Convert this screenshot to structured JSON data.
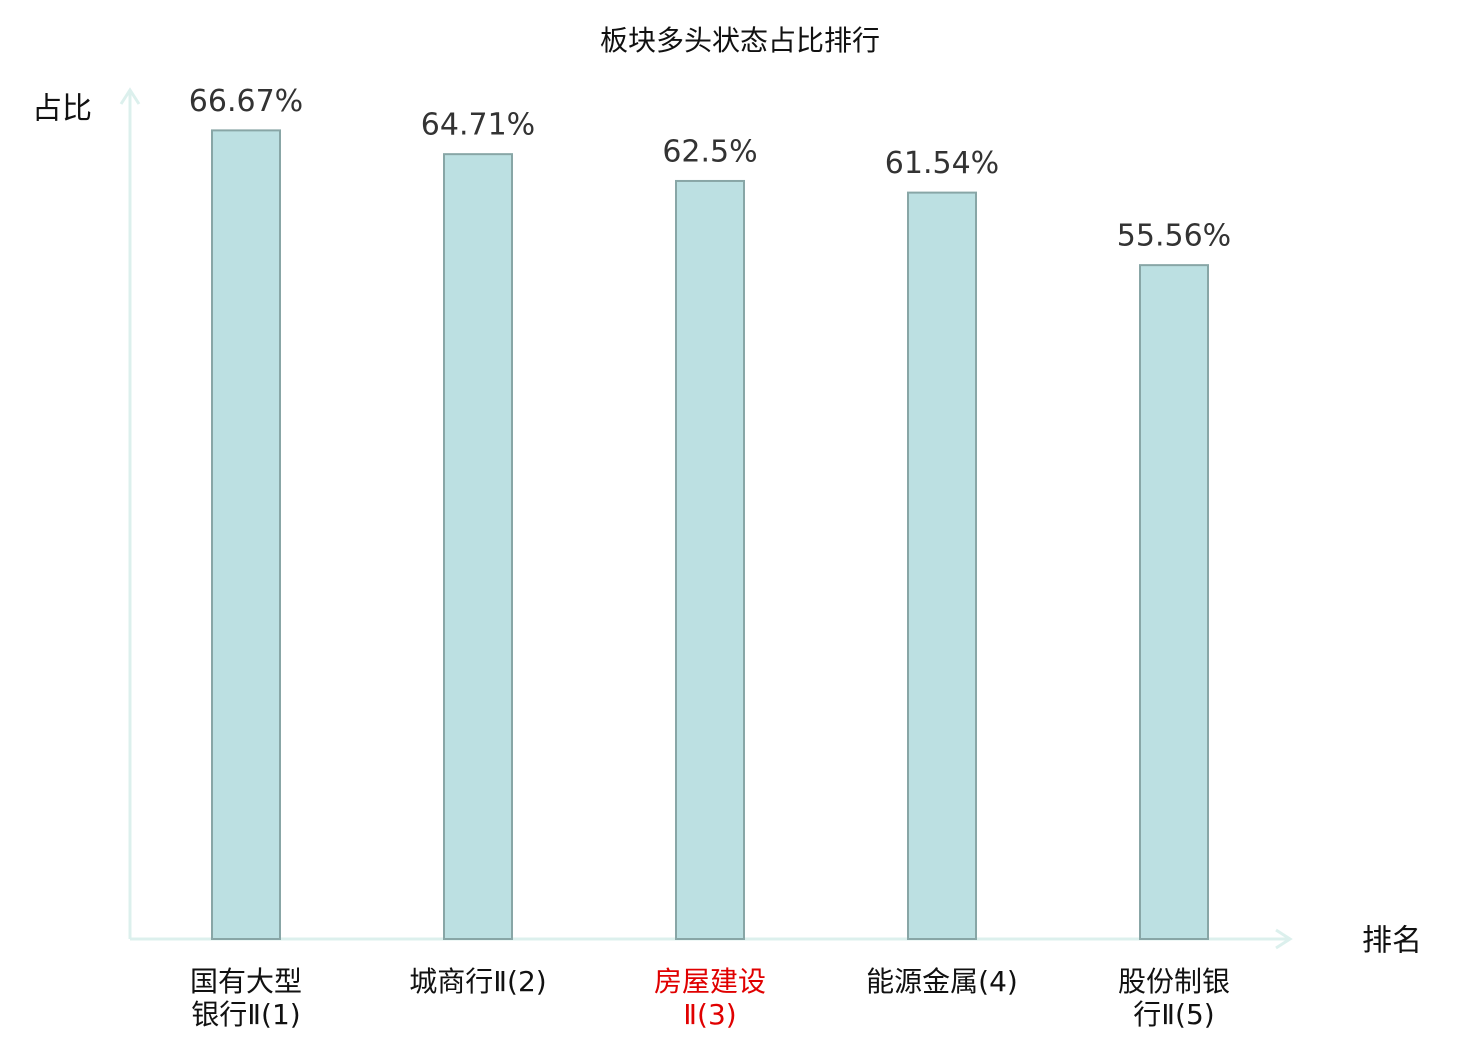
{
  "chart_data": {
    "type": "bar",
    "title": "板块多头状态占比排行",
    "y_label": "占比",
    "x_label": "排名",
    "categories": [
      "国有大型\n银行Ⅱ(1)",
      "城商行Ⅱ(2)",
      "房屋建设\nⅡ(3)",
      "能源金属(4)",
      "股份制银\n行Ⅱ(5)"
    ],
    "category_colors": [
      "#111111",
      "#111111",
      "#e00000",
      "#111111",
      "#111111"
    ],
    "values": [
      66.67,
      64.71,
      62.5,
      61.54,
      55.56
    ],
    "value_labels": [
      "66.67%",
      "64.71%",
      "62.5%",
      "61.54%",
      "55.56%"
    ],
    "color": "#bce0e2",
    "edge_color": "#88a6a6",
    "axis_color": "#dcf0ed",
    "ylim": [
      0,
      70
    ]
  }
}
